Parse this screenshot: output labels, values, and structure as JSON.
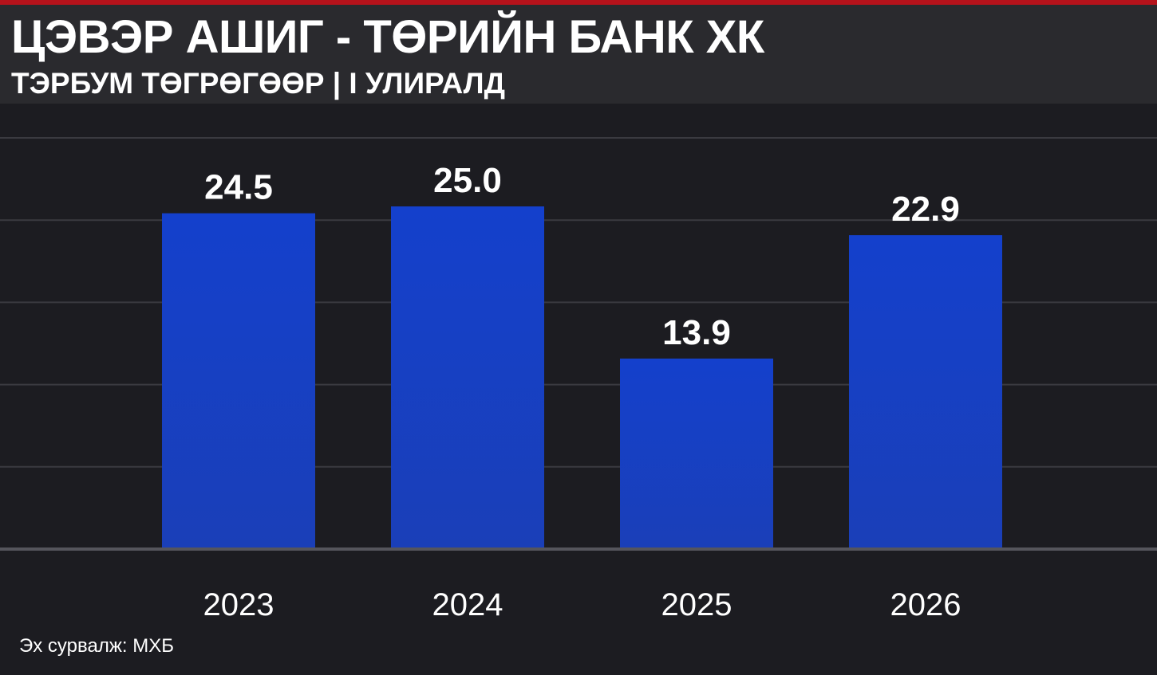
{
  "header": {
    "title": "ЦЭВЭР АШИГ - ТӨРИЙН БАНК ХК",
    "subtitle": "ТЭРБУМ ТӨГРӨГӨӨР | I УЛИРАЛД"
  },
  "source": "Эх сурвалж: МХБ",
  "colors": {
    "bar_top": "#1440cc",
    "bar_bottom": "#1a3fb8",
    "background": "#1c1c21",
    "header_bg": "#2a2a2e",
    "accent": "#b5121b",
    "gridline": "#3a3a40",
    "baseline": "#55555c"
  },
  "chart_data": {
    "type": "bar",
    "categories": [
      "2023",
      "2024",
      "2025",
      "2026"
    ],
    "values": [
      24.5,
      25.0,
      13.9,
      22.9
    ],
    "data_labels": [
      "24.5",
      "25.0",
      "13.9",
      "22.9"
    ],
    "ylim": [
      0,
      30
    ],
    "grid": true,
    "legend": "none"
  }
}
